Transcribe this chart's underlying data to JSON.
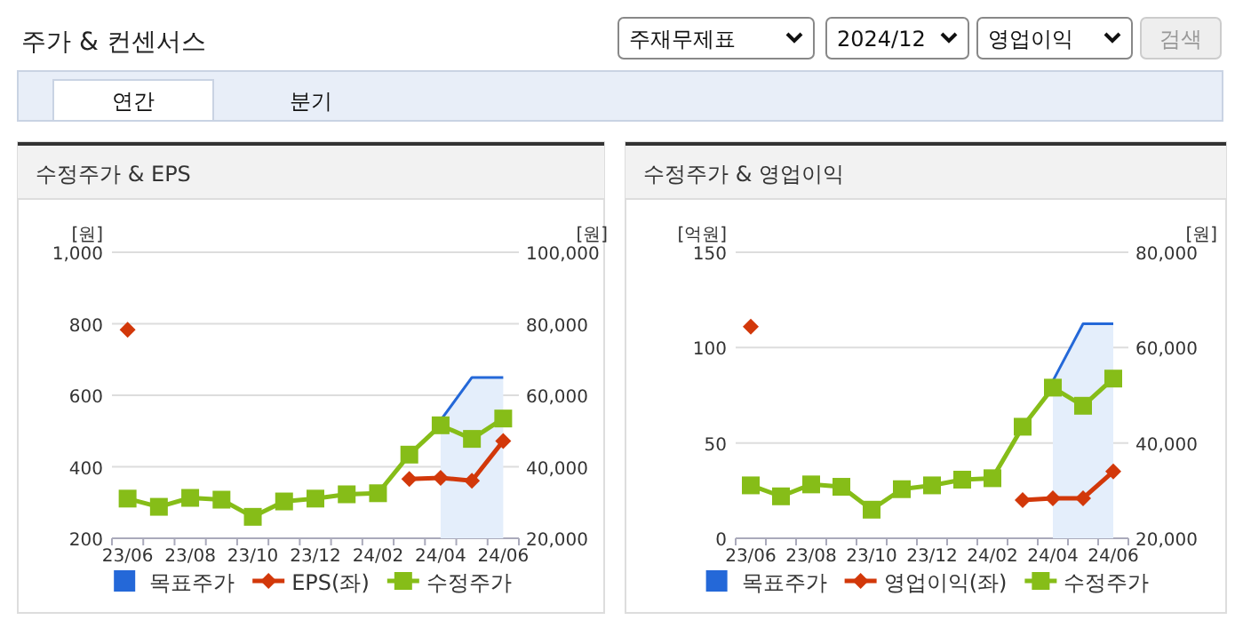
{
  "chart_data": [
    {
      "type": "other",
      "title": "주가 & 컨센서스",
      "annotations": [
        "주재무제표",
        "2024/12",
        "영업이익",
        "검색",
        "연간",
        "분기"
      ]
    },
    {
      "type": "line",
      "title": "수정주가 & EPS",
      "ylabel": "[원]",
      "y2label": "[원]",
      "categories": [
        "23/06",
        null,
        "23/08",
        null,
        "23/10",
        null,
        "23/12",
        null,
        "24/02",
        null,
        "24/04",
        null,
        "24/06"
      ],
      "series": [
        {
          "name": "목표주가",
          "type": "area",
          "axis": "y2",
          "color": "#2468d8",
          "marker": "none",
          "values": [
            null,
            null,
            null,
            null,
            null,
            null,
            null,
            null,
            null,
            null,
            53000,
            65000,
            65000
          ]
        },
        {
          "name": "EPS(좌)",
          "type": "line",
          "color": "#d2380a",
          "marker": "diamond",
          "values": [
            783,
            null,
            null,
            null,
            null,
            null,
            null,
            null,
            null,
            366,
            369,
            361,
            472
          ]
        },
        {
          "name": "수정주가",
          "type": "line",
          "axis": "y2",
          "color": "#86bd18",
          "marker": "square",
          "values": [
            31100,
            28800,
            31300,
            30800,
            26000,
            30300,
            31100,
            32300,
            32600,
            43400,
            51600,
            47800,
            53500
          ]
        }
      ],
      "ylim": [
        200,
        1000
      ],
      "yticks": [
        200,
        400,
        600,
        800,
        {
          "value": 1000,
          "label": "1,000"
        }
      ],
      "y2lim": [
        20000,
        100000
      ],
      "y2ticks": [
        {
          "value": 20000,
          "label": "20,000"
        },
        {
          "value": 40000,
          "label": "40,000"
        },
        {
          "value": 60000,
          "label": "60,000"
        },
        {
          "value": 80000,
          "label": "80,000"
        },
        {
          "value": 100000,
          "label": "100,000"
        }
      ],
      "grid": "y",
      "legend": "bottom"
    },
    {
      "type": "line",
      "title": "수정주가 & 영업이익",
      "ylabel": "[억원]",
      "y2label": "[원]",
      "categories": [
        "23/06",
        null,
        "23/08",
        null,
        "23/10",
        null,
        "23/12",
        null,
        "24/02",
        null,
        "24/04",
        null,
        "24/06"
      ],
      "series": [
        {
          "name": "목표주가",
          "type": "area",
          "axis": "y2",
          "color": "#2468d8",
          "marker": "none",
          "values": [
            null,
            null,
            null,
            null,
            null,
            null,
            null,
            null,
            null,
            null,
            53000,
            65000,
            65000
          ]
        },
        {
          "name": "영업이익(좌)",
          "type": "line",
          "color": "#d2380a",
          "marker": "diamond",
          "values": [
            111,
            null,
            null,
            null,
            null,
            null,
            null,
            null,
            null,
            20,
            21,
            21,
            35
          ]
        },
        {
          "name": "수정주가",
          "type": "line",
          "axis": "y2",
          "color": "#86bd18",
          "marker": "square",
          "values": [
            31100,
            28800,
            31300,
            30800,
            26000,
            30300,
            31100,
            32300,
            32600,
            43400,
            51600,
            47800,
            53500
          ]
        }
      ],
      "ylim": [
        0,
        150
      ],
      "yticks": [
        0,
        50,
        100,
        150
      ],
      "y2lim": [
        20000,
        80000
      ],
      "y2ticks": [
        {
          "value": 20000,
          "label": "20,000"
        },
        {
          "value": 40000,
          "label": "40,000"
        },
        {
          "value": 60000,
          "label": "60,000"
        },
        {
          "value": 80000,
          "label": "80,000"
        }
      ],
      "grid": "y",
      "legend": "bottom"
    }
  ]
}
